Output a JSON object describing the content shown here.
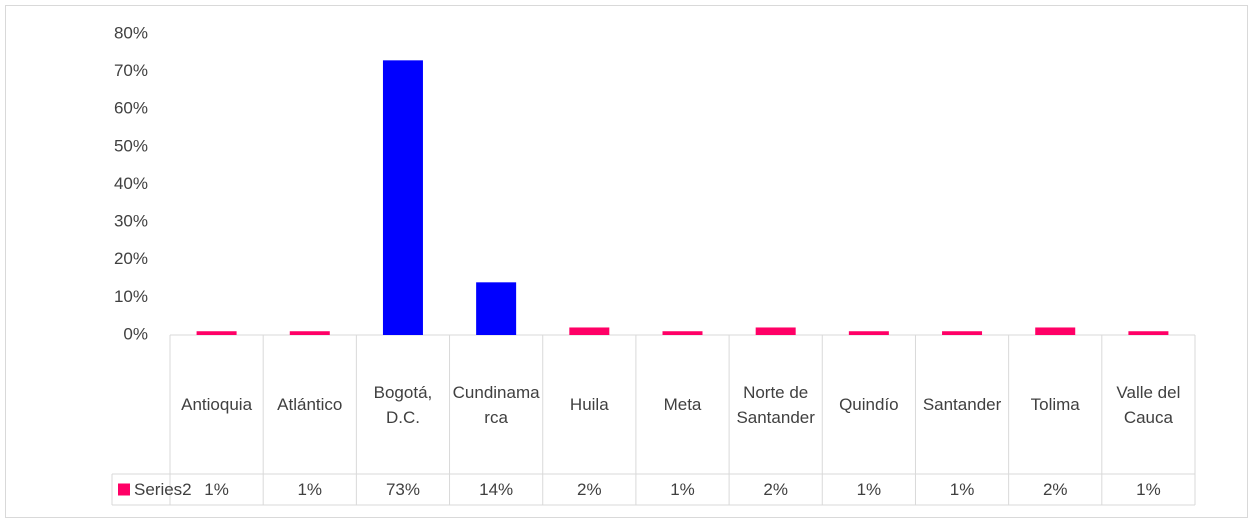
{
  "chart_data": {
    "type": "bar",
    "categories": [
      "Antioquia",
      "Atlántico",
      "Bogotá, D.C.",
      "Cundinamarca",
      "Huila",
      "Meta",
      "Norte de Santander",
      "Quindío",
      "Santander",
      "Tolima",
      "Valle del Cauca"
    ],
    "series": [
      {
        "name": "Series2",
        "color": "#ff0066",
        "colors": [
          "#ff0066",
          "#ff0066",
          "#0000ff",
          "#0000ff",
          "#ff0066",
          "#ff0066",
          "#ff0066",
          "#ff0066",
          "#ff0066",
          "#ff0066",
          "#ff0066"
        ],
        "values": [
          1,
          1,
          73,
          14,
          2,
          1,
          2,
          1,
          1,
          2,
          1
        ],
        "value_labels": [
          "1%",
          "1%",
          "73%",
          "14%",
          "2%",
          "1%",
          "2%",
          "1%",
          "1%",
          "2%",
          "1%"
        ]
      }
    ],
    "ylim": [
      0,
      80
    ],
    "yticks": [
      {
        "value": 0,
        "label": "0%"
      },
      {
        "value": 10,
        "label": "10%"
      },
      {
        "value": 20,
        "label": "20%"
      },
      {
        "value": 30,
        "label": "30%"
      },
      {
        "value": 40,
        "label": "40%"
      },
      {
        "value": 50,
        "label": "50%"
      },
      {
        "value": 60,
        "label": "60%"
      },
      {
        "value": 70,
        "label": "70%"
      },
      {
        "value": 80,
        "label": "80%"
      }
    ],
    "grid": false
  }
}
